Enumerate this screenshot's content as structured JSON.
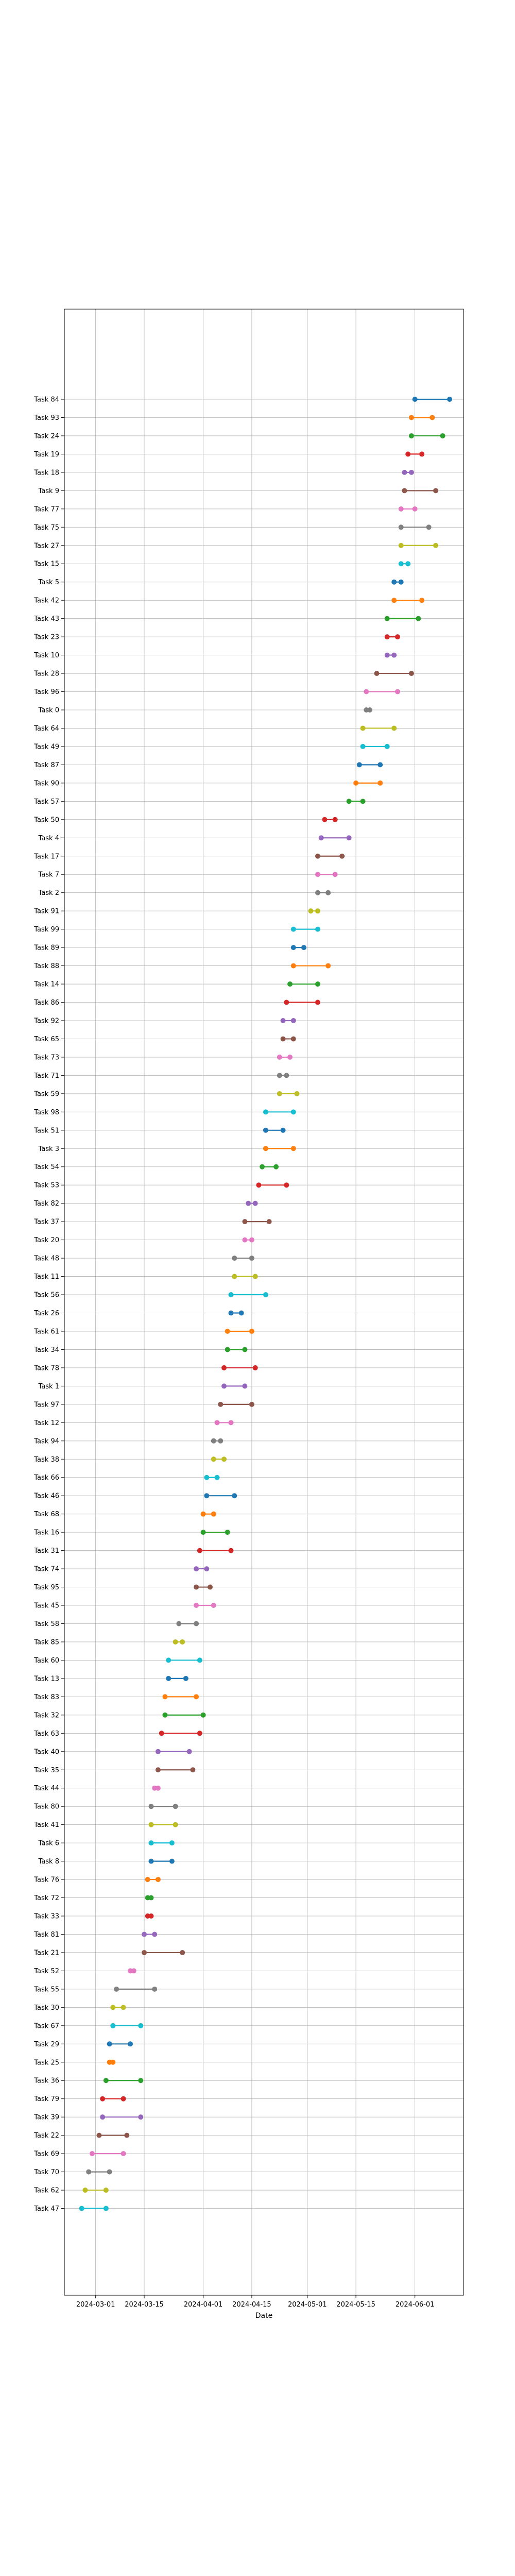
{
  "chart_data": {
    "type": "dumbbell",
    "title": "",
    "xlabel": "Date",
    "ylabel": "",
    "x_axis_type": "date",
    "xlim": [
      "2024-02-21",
      "2024-06-15"
    ],
    "x_ticks": [
      "2024-03-01",
      "2024-03-15",
      "2024-04-01",
      "2024-04-15",
      "2024-05-01",
      "2024-05-15",
      "2024-06-01"
    ],
    "grid": true,
    "legend": "none",
    "colors": [
      "#1f77b4",
      "#ff7f0e",
      "#2ca02c",
      "#d62728",
      "#9467bd",
      "#8c564b",
      "#e377c2",
      "#7f7f7f",
      "#bcbd22",
      "#17becf"
    ],
    "tasks": [
      {
        "name": "Task 84",
        "start": "2024-06-01",
        "end": "2024-06-11"
      },
      {
        "name": "Task 93",
        "start": "2024-05-31",
        "end": "2024-06-06"
      },
      {
        "name": "Task 24",
        "start": "2024-05-31",
        "end": "2024-06-09"
      },
      {
        "name": "Task 19",
        "start": "2024-05-30",
        "end": "2024-06-03"
      },
      {
        "name": "Task 18",
        "start": "2024-05-29",
        "end": "2024-05-31"
      },
      {
        "name": "Task 9",
        "start": "2024-05-29",
        "end": "2024-06-07"
      },
      {
        "name": "Task 77",
        "start": "2024-05-28",
        "end": "2024-06-01"
      },
      {
        "name": "Task 75",
        "start": "2024-05-28",
        "end": "2024-06-05"
      },
      {
        "name": "Task 27",
        "start": "2024-05-28",
        "end": "2024-06-07"
      },
      {
        "name": "Task 15",
        "start": "2024-05-28",
        "end": "2024-05-30"
      },
      {
        "name": "Task 5",
        "start": "2024-05-26",
        "end": "2024-05-28"
      },
      {
        "name": "Task 42",
        "start": "2024-05-26",
        "end": "2024-06-03"
      },
      {
        "name": "Task 43",
        "start": "2024-05-24",
        "end": "2024-06-02"
      },
      {
        "name": "Task 23",
        "start": "2024-05-24",
        "end": "2024-05-27"
      },
      {
        "name": "Task 10",
        "start": "2024-05-24",
        "end": "2024-05-26"
      },
      {
        "name": "Task 28",
        "start": "2024-05-21",
        "end": "2024-05-31"
      },
      {
        "name": "Task 96",
        "start": "2024-05-18",
        "end": "2024-05-27"
      },
      {
        "name": "Task 0",
        "start": "2024-05-18",
        "end": "2024-05-19"
      },
      {
        "name": "Task 64",
        "start": "2024-05-17",
        "end": "2024-05-26"
      },
      {
        "name": "Task 49",
        "start": "2024-05-17",
        "end": "2024-05-24"
      },
      {
        "name": "Task 87",
        "start": "2024-05-16",
        "end": "2024-05-22"
      },
      {
        "name": "Task 90",
        "start": "2024-05-15",
        "end": "2024-05-22"
      },
      {
        "name": "Task 57",
        "start": "2024-05-13",
        "end": "2024-05-17"
      },
      {
        "name": "Task 50",
        "start": "2024-05-06",
        "end": "2024-05-09"
      },
      {
        "name": "Task 4",
        "start": "2024-05-05",
        "end": "2024-05-13"
      },
      {
        "name": "Task 17",
        "start": "2024-05-04",
        "end": "2024-05-11"
      },
      {
        "name": "Task 7",
        "start": "2024-05-04",
        "end": "2024-05-09"
      },
      {
        "name": "Task 2",
        "start": "2024-05-04",
        "end": "2024-05-07"
      },
      {
        "name": "Task 91",
        "start": "2024-05-02",
        "end": "2024-05-04"
      },
      {
        "name": "Task 99",
        "start": "2024-04-27",
        "end": "2024-05-04"
      },
      {
        "name": "Task 89",
        "start": "2024-04-27",
        "end": "2024-04-30"
      },
      {
        "name": "Task 88",
        "start": "2024-04-27",
        "end": "2024-05-07"
      },
      {
        "name": "Task 14",
        "start": "2024-04-26",
        "end": "2024-05-04"
      },
      {
        "name": "Task 86",
        "start": "2024-04-25",
        "end": "2024-05-04"
      },
      {
        "name": "Task 92",
        "start": "2024-04-24",
        "end": "2024-04-27"
      },
      {
        "name": "Task 65",
        "start": "2024-04-24",
        "end": "2024-04-27"
      },
      {
        "name": "Task 73",
        "start": "2024-04-23",
        "end": "2024-04-26"
      },
      {
        "name": "Task 71",
        "start": "2024-04-23",
        "end": "2024-04-25"
      },
      {
        "name": "Task 59",
        "start": "2024-04-23",
        "end": "2024-04-28"
      },
      {
        "name": "Task 98",
        "start": "2024-04-19",
        "end": "2024-04-27"
      },
      {
        "name": "Task 51",
        "start": "2024-04-19",
        "end": "2024-04-24"
      },
      {
        "name": "Task 3",
        "start": "2024-04-19",
        "end": "2024-04-27"
      },
      {
        "name": "Task 54",
        "start": "2024-04-18",
        "end": "2024-04-22"
      },
      {
        "name": "Task 53",
        "start": "2024-04-17",
        "end": "2024-04-25"
      },
      {
        "name": "Task 82",
        "start": "2024-04-14",
        "end": "2024-04-16"
      },
      {
        "name": "Task 37",
        "start": "2024-04-13",
        "end": "2024-04-20"
      },
      {
        "name": "Task 20",
        "start": "2024-04-13",
        "end": "2024-04-15"
      },
      {
        "name": "Task 48",
        "start": "2024-04-10",
        "end": "2024-04-15"
      },
      {
        "name": "Task 11",
        "start": "2024-04-10",
        "end": "2024-04-16"
      },
      {
        "name": "Task 56",
        "start": "2024-04-09",
        "end": "2024-04-19"
      },
      {
        "name": "Task 26",
        "start": "2024-04-09",
        "end": "2024-04-12"
      },
      {
        "name": "Task 61",
        "start": "2024-04-08",
        "end": "2024-04-15"
      },
      {
        "name": "Task 34",
        "start": "2024-04-08",
        "end": "2024-04-13"
      },
      {
        "name": "Task 78",
        "start": "2024-04-07",
        "end": "2024-04-16"
      },
      {
        "name": "Task 1",
        "start": "2024-04-07",
        "end": "2024-04-13"
      },
      {
        "name": "Task 97",
        "start": "2024-04-06",
        "end": "2024-04-15"
      },
      {
        "name": "Task 12",
        "start": "2024-04-05",
        "end": "2024-04-09"
      },
      {
        "name": "Task 94",
        "start": "2024-04-04",
        "end": "2024-04-06"
      },
      {
        "name": "Task 38",
        "start": "2024-04-04",
        "end": "2024-04-07"
      },
      {
        "name": "Task 66",
        "start": "2024-04-02",
        "end": "2024-04-05"
      },
      {
        "name": "Task 46",
        "start": "2024-04-02",
        "end": "2024-04-10"
      },
      {
        "name": "Task 68",
        "start": "2024-04-01",
        "end": "2024-04-04"
      },
      {
        "name": "Task 16",
        "start": "2024-04-01",
        "end": "2024-04-08"
      },
      {
        "name": "Task 31",
        "start": "2024-03-31",
        "end": "2024-04-09"
      },
      {
        "name": "Task 74",
        "start": "2024-03-30",
        "end": "2024-04-02"
      },
      {
        "name": "Task 95",
        "start": "2024-03-30",
        "end": "2024-04-03"
      },
      {
        "name": "Task 45",
        "start": "2024-03-30",
        "end": "2024-04-04"
      },
      {
        "name": "Task 58",
        "start": "2024-03-25",
        "end": "2024-03-30"
      },
      {
        "name": "Task 85",
        "start": "2024-03-24",
        "end": "2024-03-26"
      },
      {
        "name": "Task 60",
        "start": "2024-03-22",
        "end": "2024-03-31"
      },
      {
        "name": "Task 13",
        "start": "2024-03-22",
        "end": "2024-03-27"
      },
      {
        "name": "Task 83",
        "start": "2024-03-21",
        "end": "2024-03-30"
      },
      {
        "name": "Task 32",
        "start": "2024-03-21",
        "end": "2024-04-01"
      },
      {
        "name": "Task 63",
        "start": "2024-03-20",
        "end": "2024-03-31"
      },
      {
        "name": "Task 40",
        "start": "2024-03-19",
        "end": "2024-03-28"
      },
      {
        "name": "Task 35",
        "start": "2024-03-19",
        "end": "2024-03-29"
      },
      {
        "name": "Task 44",
        "start": "2024-03-18",
        "end": "2024-03-19"
      },
      {
        "name": "Task 80",
        "start": "2024-03-17",
        "end": "2024-03-24"
      },
      {
        "name": "Task 41",
        "start": "2024-03-17",
        "end": "2024-03-24"
      },
      {
        "name": "Task 6",
        "start": "2024-03-17",
        "end": "2024-03-23"
      },
      {
        "name": "Task 8",
        "start": "2024-03-17",
        "end": "2024-03-23"
      },
      {
        "name": "Task 76",
        "start": "2024-03-16",
        "end": "2024-03-19"
      },
      {
        "name": "Task 72",
        "start": "2024-03-16",
        "end": "2024-03-17"
      },
      {
        "name": "Task 33",
        "start": "2024-03-16",
        "end": "2024-03-17"
      },
      {
        "name": "Task 81",
        "start": "2024-03-15",
        "end": "2024-03-18"
      },
      {
        "name": "Task 21",
        "start": "2024-03-15",
        "end": "2024-03-26"
      },
      {
        "name": "Task 52",
        "start": "2024-03-11",
        "end": "2024-03-12"
      },
      {
        "name": "Task 55",
        "start": "2024-03-07",
        "end": "2024-03-18"
      },
      {
        "name": "Task 30",
        "start": "2024-03-06",
        "end": "2024-03-09"
      },
      {
        "name": "Task 67",
        "start": "2024-03-06",
        "end": "2024-03-14"
      },
      {
        "name": "Task 29",
        "start": "2024-03-05",
        "end": "2024-03-11"
      },
      {
        "name": "Task 25",
        "start": "2024-03-05",
        "end": "2024-03-06"
      },
      {
        "name": "Task 36",
        "start": "2024-03-04",
        "end": "2024-03-14"
      },
      {
        "name": "Task 79",
        "start": "2024-03-03",
        "end": "2024-03-09"
      },
      {
        "name": "Task 39",
        "start": "2024-03-03",
        "end": "2024-03-14"
      },
      {
        "name": "Task 22",
        "start": "2024-03-02",
        "end": "2024-03-10"
      },
      {
        "name": "Task 69",
        "start": "2024-02-29",
        "end": "2024-03-09"
      },
      {
        "name": "Task 70",
        "start": "2024-02-28",
        "end": "2024-03-05"
      },
      {
        "name": "Task 62",
        "start": "2024-02-27",
        "end": "2024-03-04"
      },
      {
        "name": "Task 47",
        "start": "2024-02-26",
        "end": "2024-03-04"
      }
    ]
  }
}
